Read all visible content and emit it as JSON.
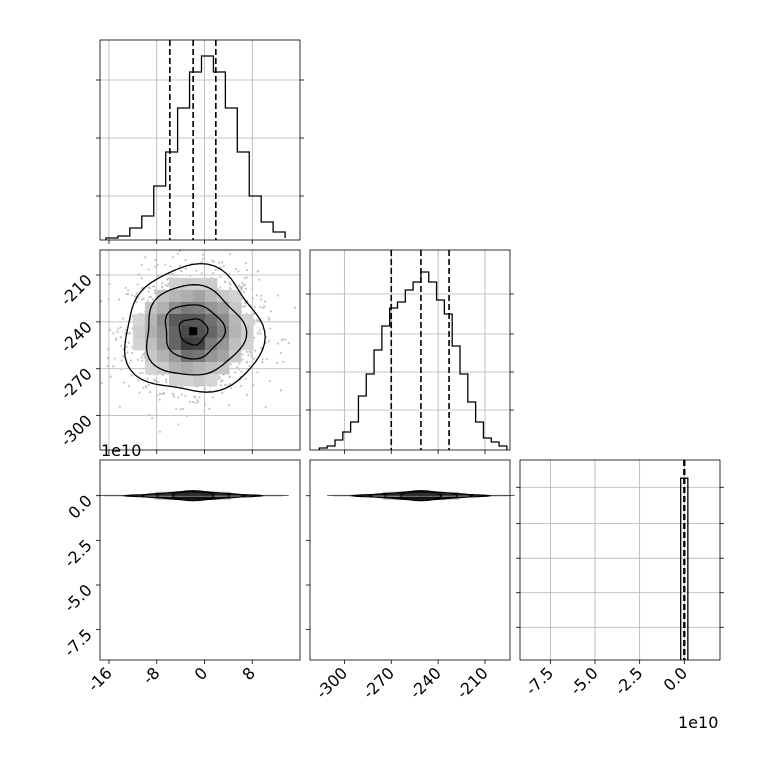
{
  "chart_data": {
    "type": "corner",
    "figure_offset_labels": {
      "row3_y": "1e10",
      "col3_x": "1e10"
    },
    "panels": [
      {
        "id": "hist-1",
        "type": "histogram",
        "row": 1,
        "col": 1,
        "xlim": [
          -17.5,
          16
        ],
        "ylim": [
          0,
          1
        ],
        "bin_edges": [
          -16.5,
          -14.5,
          -12.5,
          -10.5,
          -8.5,
          -6.5,
          -4.5,
          -2.5,
          -0.5,
          1.5,
          3.5,
          5.5,
          7.5,
          9.5,
          11.5,
          13.5
        ],
        "counts": [
          0.01,
          0.02,
          0.06,
          0.12,
          0.27,
          0.44,
          0.66,
          0.84,
          0.92,
          0.84,
          0.66,
          0.44,
          0.22,
          0.09,
          0.04,
          0.01
        ],
        "quantiles": [
          -5.8,
          -1.9,
          1.9
        ],
        "xticks": [
          -16,
          -8,
          0,
          8
        ],
        "grid": true
      },
      {
        "id": "hist2d-2-1",
        "type": "density2d",
        "row": 2,
        "col": 1,
        "xlim": [
          -17.5,
          16
        ],
        "ylim": [
          -322,
          -194
        ],
        "xticks": [
          -16,
          -8,
          0,
          8
        ],
        "yticks": [
          -210,
          -240,
          -270,
          -300
        ],
        "center": [
          -1.9,
          -246
        ],
        "sigma": [
          4.7,
          16.5
        ],
        "grid": true
      },
      {
        "id": "hist-2",
        "type": "histogram",
        "row": 2,
        "col": 2,
        "xlim": [
          -322,
          -194
        ],
        "ylim": [
          0,
          1
        ],
        "bin_edges": [
          -316,
          -311,
          -306,
          -301,
          -296,
          -291,
          -286,
          -281,
          -276,
          -271,
          -266,
          -261,
          -256,
          -251,
          -246,
          -241,
          -236,
          -231,
          -226,
          -221,
          -216,
          -211,
          -206,
          -201,
          -196
        ],
        "counts": [
          0.01,
          0.02,
          0.05,
          0.09,
          0.14,
          0.27,
          0.38,
          0.5,
          0.62,
          0.71,
          0.74,
          0.8,
          0.84,
          0.89,
          0.84,
          0.75,
          0.68,
          0.52,
          0.38,
          0.24,
          0.14,
          0.06,
          0.04,
          0.02
        ],
        "quantiles": [
          -270,
          -251,
          -233
        ],
        "xticks": [
          -300,
          -270,
          -240,
          -210
        ],
        "grid": true
      },
      {
        "id": "hist2d-3-1",
        "type": "thin-band",
        "row": 3,
        "col": 1,
        "xlim": [
          -17.5,
          16
        ],
        "ylim": [
          -9.2,
          2.0
        ],
        "yticks": [
          "0.0",
          "-2.5",
          "-5.0",
          "-7.5"
        ],
        "ytick_values": [
          0.0,
          -2.5,
          -5.0,
          -7.5
        ],
        "band_y": 0.0,
        "band_center_x": -1.9,
        "band_halfwidth_x": 16,
        "grid": false
      },
      {
        "id": "hist2d-3-2",
        "type": "thin-band",
        "row": 3,
        "col": 2,
        "xlim": [
          -322,
          -194
        ],
        "ylim": [
          -9.2,
          2.0
        ],
        "band_y": 0.0,
        "band_center_x": -251,
        "band_halfwidth_x": 60,
        "grid": false
      },
      {
        "id": "hist-3",
        "type": "histogram",
        "row": 3,
        "col": 3,
        "xlim": [
          -9.2,
          2.0
        ],
        "ylim": [
          0,
          1.1
        ],
        "bin_edges": [
          -0.2,
          0.2
        ],
        "counts": [
          1.0
        ],
        "quantiles": [
          -0.02,
          0.0,
          0.02
        ],
        "xticks": [
          "-7.5",
          "-5.0",
          "-2.5",
          "0.0"
        ],
        "xtick_values": [
          -7.5,
          -5.0,
          -2.5,
          0.0
        ],
        "grid": true
      }
    ]
  }
}
